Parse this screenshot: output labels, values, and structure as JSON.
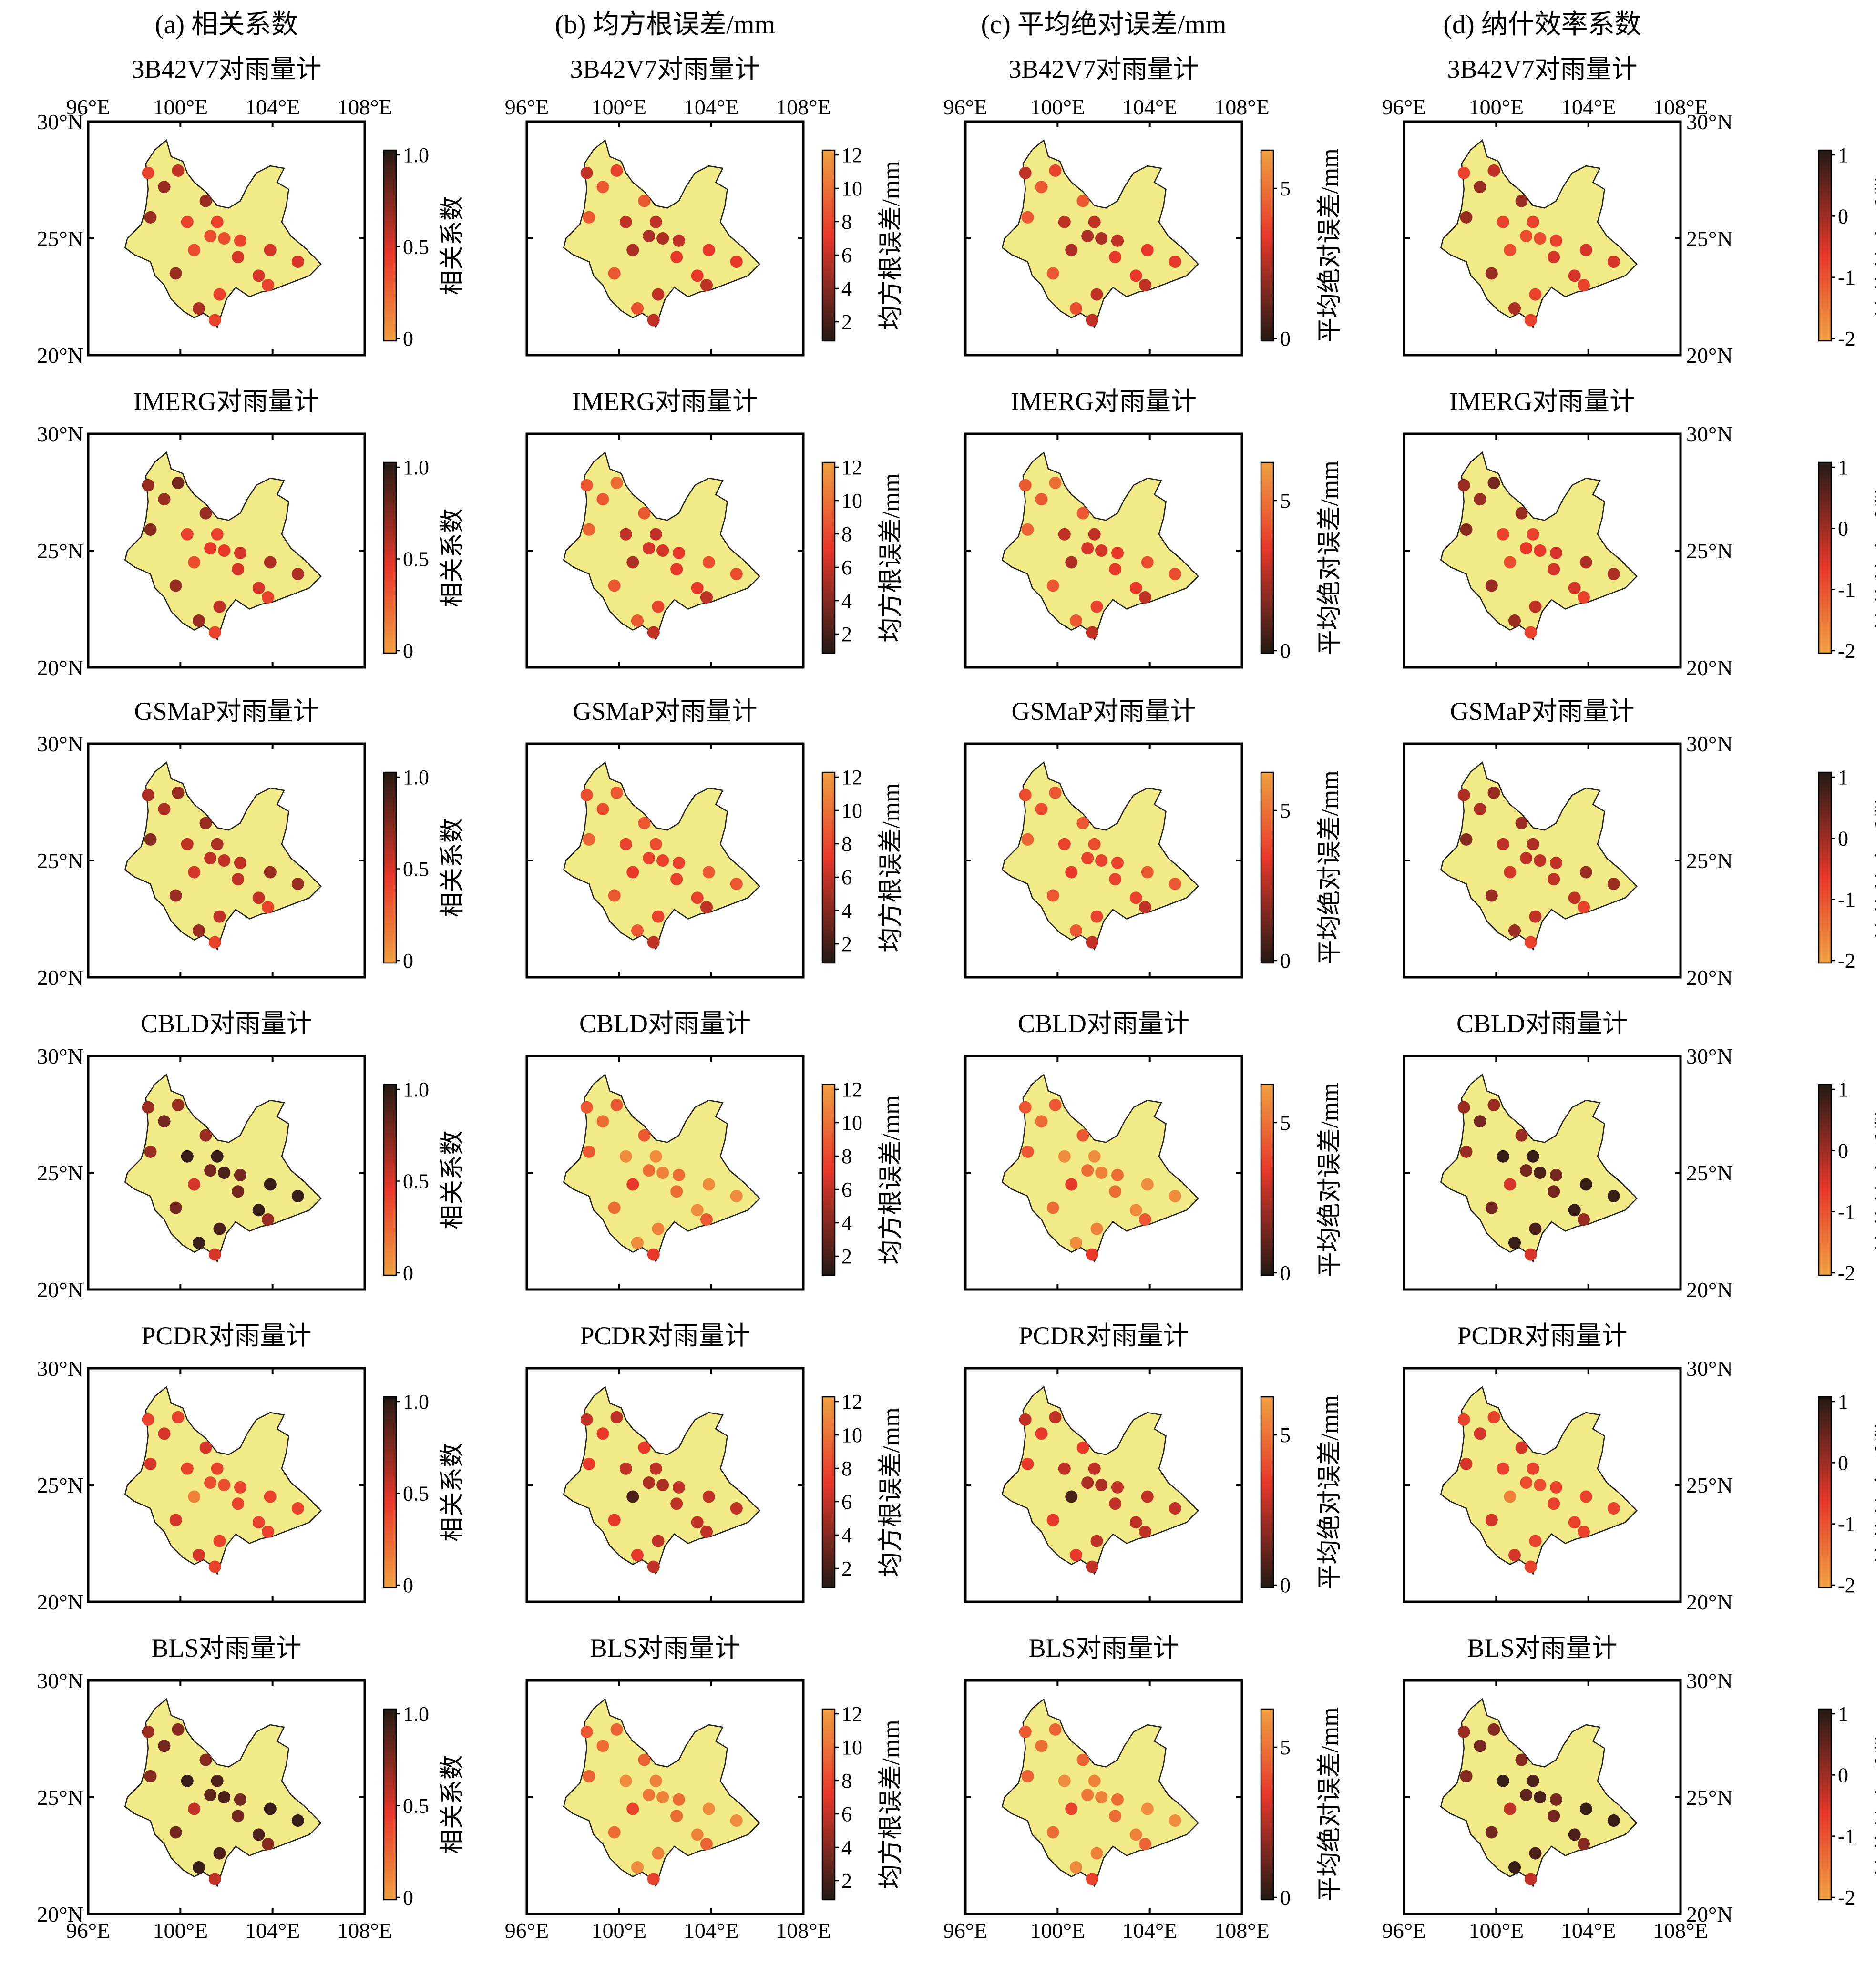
{
  "columns": [
    {
      "header": "(a) 相关系数",
      "cb_label": "相关系数",
      "cb_ticks": [
        "1.0",
        "0.5",
        "0"
      ],
      "cb_side": "right",
      "lat_side": "left",
      "cb_type": "cc"
    },
    {
      "header": "(b) 均方根误差/mm",
      "cb_label": "均方根误差/mm",
      "cb_ticks": [
        "12",
        "10",
        "8",
        "6",
        "4",
        "2"
      ],
      "cb_side": "right",
      "lat_side": "none",
      "cb_type": "rmse"
    },
    {
      "header": "(c) 平均绝对误差/mm",
      "cb_label": "平均绝对误差/mm",
      "cb_ticks": [
        "5",
        "0"
      ],
      "cb_side": "right",
      "lat_side": "none",
      "cb_type": "mae"
    },
    {
      "header": "(d) 纳什效率系数",
      "cb_label": "纳什效率系数",
      "cb_ticks": [
        "1",
        "0",
        "-1",
        "-2"
      ],
      "cb_side": "left",
      "lat_side": "right",
      "cb_type": "nse"
    }
  ],
  "rows": [
    {
      "title": "3B42V7对雨量计"
    },
    {
      "title": "IMERG对雨量计"
    },
    {
      "title": "GSMaP对雨量计"
    },
    {
      "title": "CBLD对雨量计"
    },
    {
      "title": "PCDR对雨量计"
    },
    {
      "title": "BLS对雨量计"
    }
  ],
  "lon_ticks": [
    "96°E",
    "100°E",
    "104°E",
    "108°E"
  ],
  "lat_ticks": [
    "30°N",
    "25°N",
    "20°N"
  ],
  "colors": {
    "land": "#f2eb87",
    "ramp_light": "#f0a040",
    "ramp_mid": "#e8382a",
    "ramp_dark": "#231a14"
  },
  "chart_data": {
    "type": "scatter",
    "lon_range": [
      96,
      108
    ],
    "lat_range": [
      20,
      30
    ],
    "stations": [
      {
        "lon": 98.6,
        "lat": 27.8
      },
      {
        "lon": 99.3,
        "lat": 27.2
      },
      {
        "lon": 99.9,
        "lat": 27.9
      },
      {
        "lon": 101.1,
        "lat": 26.6
      },
      {
        "lon": 98.7,
        "lat": 25.9
      },
      {
        "lon": 100.3,
        "lat": 25.7
      },
      {
        "lon": 101.6,
        "lat": 25.7
      },
      {
        "lon": 101.9,
        "lat": 25.0
      },
      {
        "lon": 101.3,
        "lat": 25.1
      },
      {
        "lon": 100.6,
        "lat": 24.5
      },
      {
        "lon": 102.6,
        "lat": 24.9
      },
      {
        "lon": 103.9,
        "lat": 24.5
      },
      {
        "lon": 102.5,
        "lat": 24.2
      },
      {
        "lon": 105.1,
        "lat": 24.0
      },
      {
        "lon": 99.8,
        "lat": 23.5
      },
      {
        "lon": 103.4,
        "lat": 23.4
      },
      {
        "lon": 103.8,
        "lat": 23.0
      },
      {
        "lon": 101.7,
        "lat": 22.6
      },
      {
        "lon": 100.8,
        "lat": 22.0
      },
      {
        "lon": 101.5,
        "lat": 21.5
      }
    ],
    "values_note": "normalized colour level per station (0 = light orange end, 1 = dark end of colorbar)",
    "levels": [
      [
        0.45,
        0.7,
        0.6,
        0.7,
        0.7,
        0.45,
        0.45,
        0.4,
        0.4,
        0.4,
        0.45,
        0.55,
        0.55,
        0.55,
        0.7,
        0.55,
        0.45,
        0.45,
        0.65,
        0.45
      ],
      [
        0.7,
        0.7,
        0.8,
        0.7,
        0.75,
        0.45,
        0.45,
        0.5,
        0.5,
        0.4,
        0.55,
        0.65,
        0.55,
        0.65,
        0.7,
        0.55,
        0.45,
        0.6,
        0.7,
        0.45
      ],
      [
        0.65,
        0.65,
        0.7,
        0.7,
        0.75,
        0.6,
        0.65,
        0.6,
        0.6,
        0.55,
        0.6,
        0.7,
        0.6,
        0.7,
        0.7,
        0.6,
        0.45,
        0.6,
        0.7,
        0.45
      ],
      [
        0.7,
        0.8,
        0.7,
        0.7,
        0.7,
        0.95,
        0.95,
        0.9,
        0.8,
        0.55,
        0.8,
        0.95,
        0.8,
        0.95,
        0.8,
        0.95,
        0.7,
        0.9,
        0.95,
        0.55
      ],
      [
        0.45,
        0.55,
        0.45,
        0.55,
        0.55,
        0.45,
        0.45,
        0.4,
        0.4,
        0.15,
        0.45,
        0.45,
        0.45,
        0.45,
        0.55,
        0.45,
        0.45,
        0.45,
        0.55,
        0.45
      ],
      [
        0.7,
        0.8,
        0.75,
        0.75,
        0.75,
        0.95,
        0.9,
        0.9,
        0.85,
        0.6,
        0.8,
        0.95,
        0.8,
        0.95,
        0.8,
        0.9,
        0.75,
        0.9,
        0.95,
        0.6
      ]
    ],
    "invert_for_error_columns": true
  }
}
